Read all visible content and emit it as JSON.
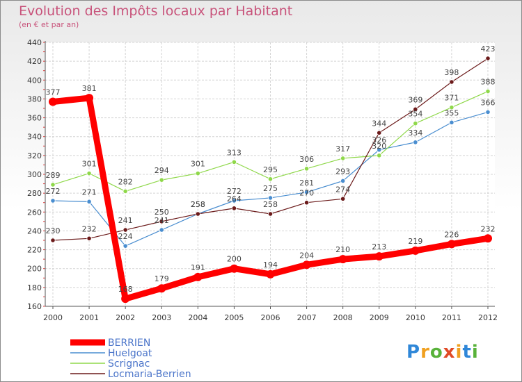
{
  "chart_data": {
    "type": "line",
    "title": "Evolution des Impôts locaux par Habitant",
    "subtitle": "(en € et par an)",
    "xlabel": "",
    "ylabel": "",
    "x": [
      "2000",
      "2001",
      "2002",
      "2003",
      "2004",
      "2005",
      "2006",
      "2007",
      "2008",
      "2009",
      "2010",
      "2011",
      "2012"
    ],
    "ylim": [
      160,
      440
    ],
    "yticks": [
      160,
      180,
      200,
      220,
      240,
      260,
      280,
      300,
      320,
      340,
      360,
      380,
      400,
      420,
      440
    ],
    "grid": true,
    "legend": "bottom-left",
    "series": [
      {
        "name": "BERRIEN",
        "color": "#ff0000",
        "values": [
          377,
          381,
          168,
          179,
          191,
          200,
          194,
          204,
          210,
          213,
          219,
          226,
          232
        ]
      },
      {
        "name": "Huelgoat",
        "color": "#4a8ed0",
        "values": [
          272,
          271,
          224,
          241,
          258,
          272,
          275,
          281,
          293,
          326,
          334,
          355,
          366
        ]
      },
      {
        "name": "Scrignac",
        "color": "#8fd84a",
        "values": [
          289,
          301,
          282,
          294,
          301,
          313,
          295,
          306,
          317,
          320,
          354,
          371,
          388
        ]
      },
      {
        "name": "Locmaria-Berrien",
        "color": "#6b1a1a",
        "values": [
          230,
          232,
          241,
          250,
          258,
          264,
          258,
          270,
          274,
          344,
          369,
          398,
          423
        ]
      }
    ]
  },
  "logo": {
    "letters": [
      "P",
      "r",
      "o",
      "x",
      "i",
      "t",
      "i"
    ],
    "colors": [
      "#2f87d8",
      "#f0a020",
      "#58b23a",
      "#e04a26",
      "#f0a020",
      "#2f87d8",
      "#58b23a"
    ]
  }
}
